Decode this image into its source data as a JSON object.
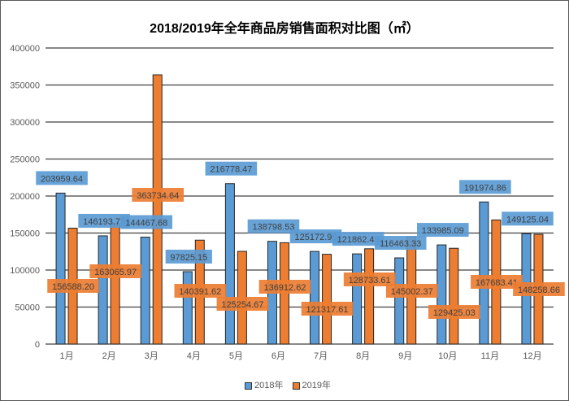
{
  "chart_data": {
    "type": "bar",
    "title": "2018/2019年全年商品房销售面积对比图（㎡）",
    "categories": [
      "1月",
      "2月",
      "3月",
      "4月",
      "5月",
      "6月",
      "7月",
      "8月",
      "9月",
      "10月",
      "11月",
      "12月"
    ],
    "series": [
      {
        "name": "2018年",
        "color": "#5b9bd5",
        "values": [
          203959.64,
          146193.75,
          144467.68,
          97825.15,
          216778.47,
          138798.53,
          125172.98,
          121862.49,
          116463.33,
          133985.09,
          191974.86,
          149125.04
        ]
      },
      {
        "name": "2019年",
        "color": "#ed7d31",
        "values": [
          156588.2,
          163065.97,
          363734.64,
          140391.62,
          125254.67,
          136912.62,
          121317.61,
          128733.61,
          145002.37,
          129425.03,
          167683.41,
          148258.66
        ]
      }
    ],
    "yticks": [
      0,
      50000,
      100000,
      150000,
      200000,
      250000,
      300000,
      350000,
      400000
    ],
    "ylim": [
      0,
      400000
    ],
    "grid": true,
    "legend_position": "bottom"
  }
}
